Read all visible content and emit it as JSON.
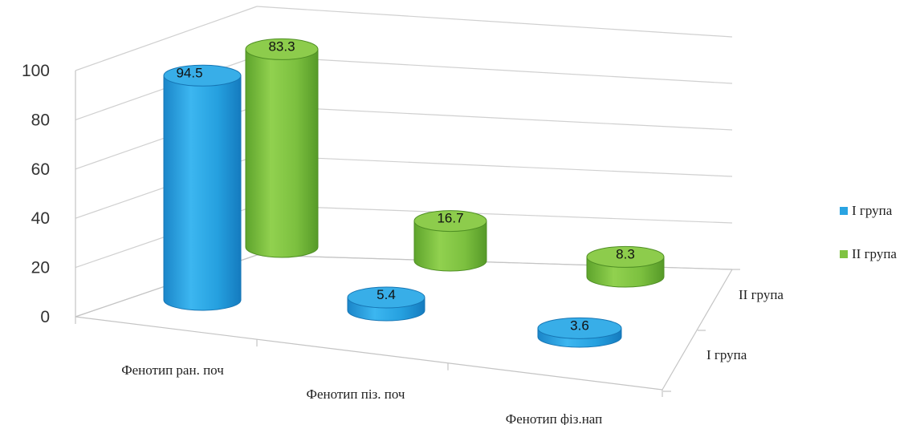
{
  "chart_data": {
    "type": "bar",
    "style": "3d-cylinder",
    "title": "",
    "xlabel": "",
    "ylabel": "",
    "ylim": [
      0,
      100
    ],
    "yticks": [
      0,
      20,
      40,
      60,
      80,
      100
    ],
    "grid": true,
    "legend_position": "right",
    "categories": [
      "Фенотип ран. поч",
      "Фенотип пiз. поч",
      "Фенотип фiз.нап"
    ],
    "depth_labels": [
      "I група",
      "II група"
    ],
    "series": [
      {
        "name": "I група",
        "color": "#2aa4e2",
        "values": [
          94.5,
          5.4,
          3.6
        ],
        "value_labels": [
          "94.5",
          "5.4",
          "3.6"
        ]
      },
      {
        "name": "II група",
        "color": "#7fc241",
        "values": [
          83.3,
          16.7,
          8.3
        ],
        "value_labels": [
          "83.3",
          "16.7",
          "8.3"
        ]
      }
    ]
  }
}
